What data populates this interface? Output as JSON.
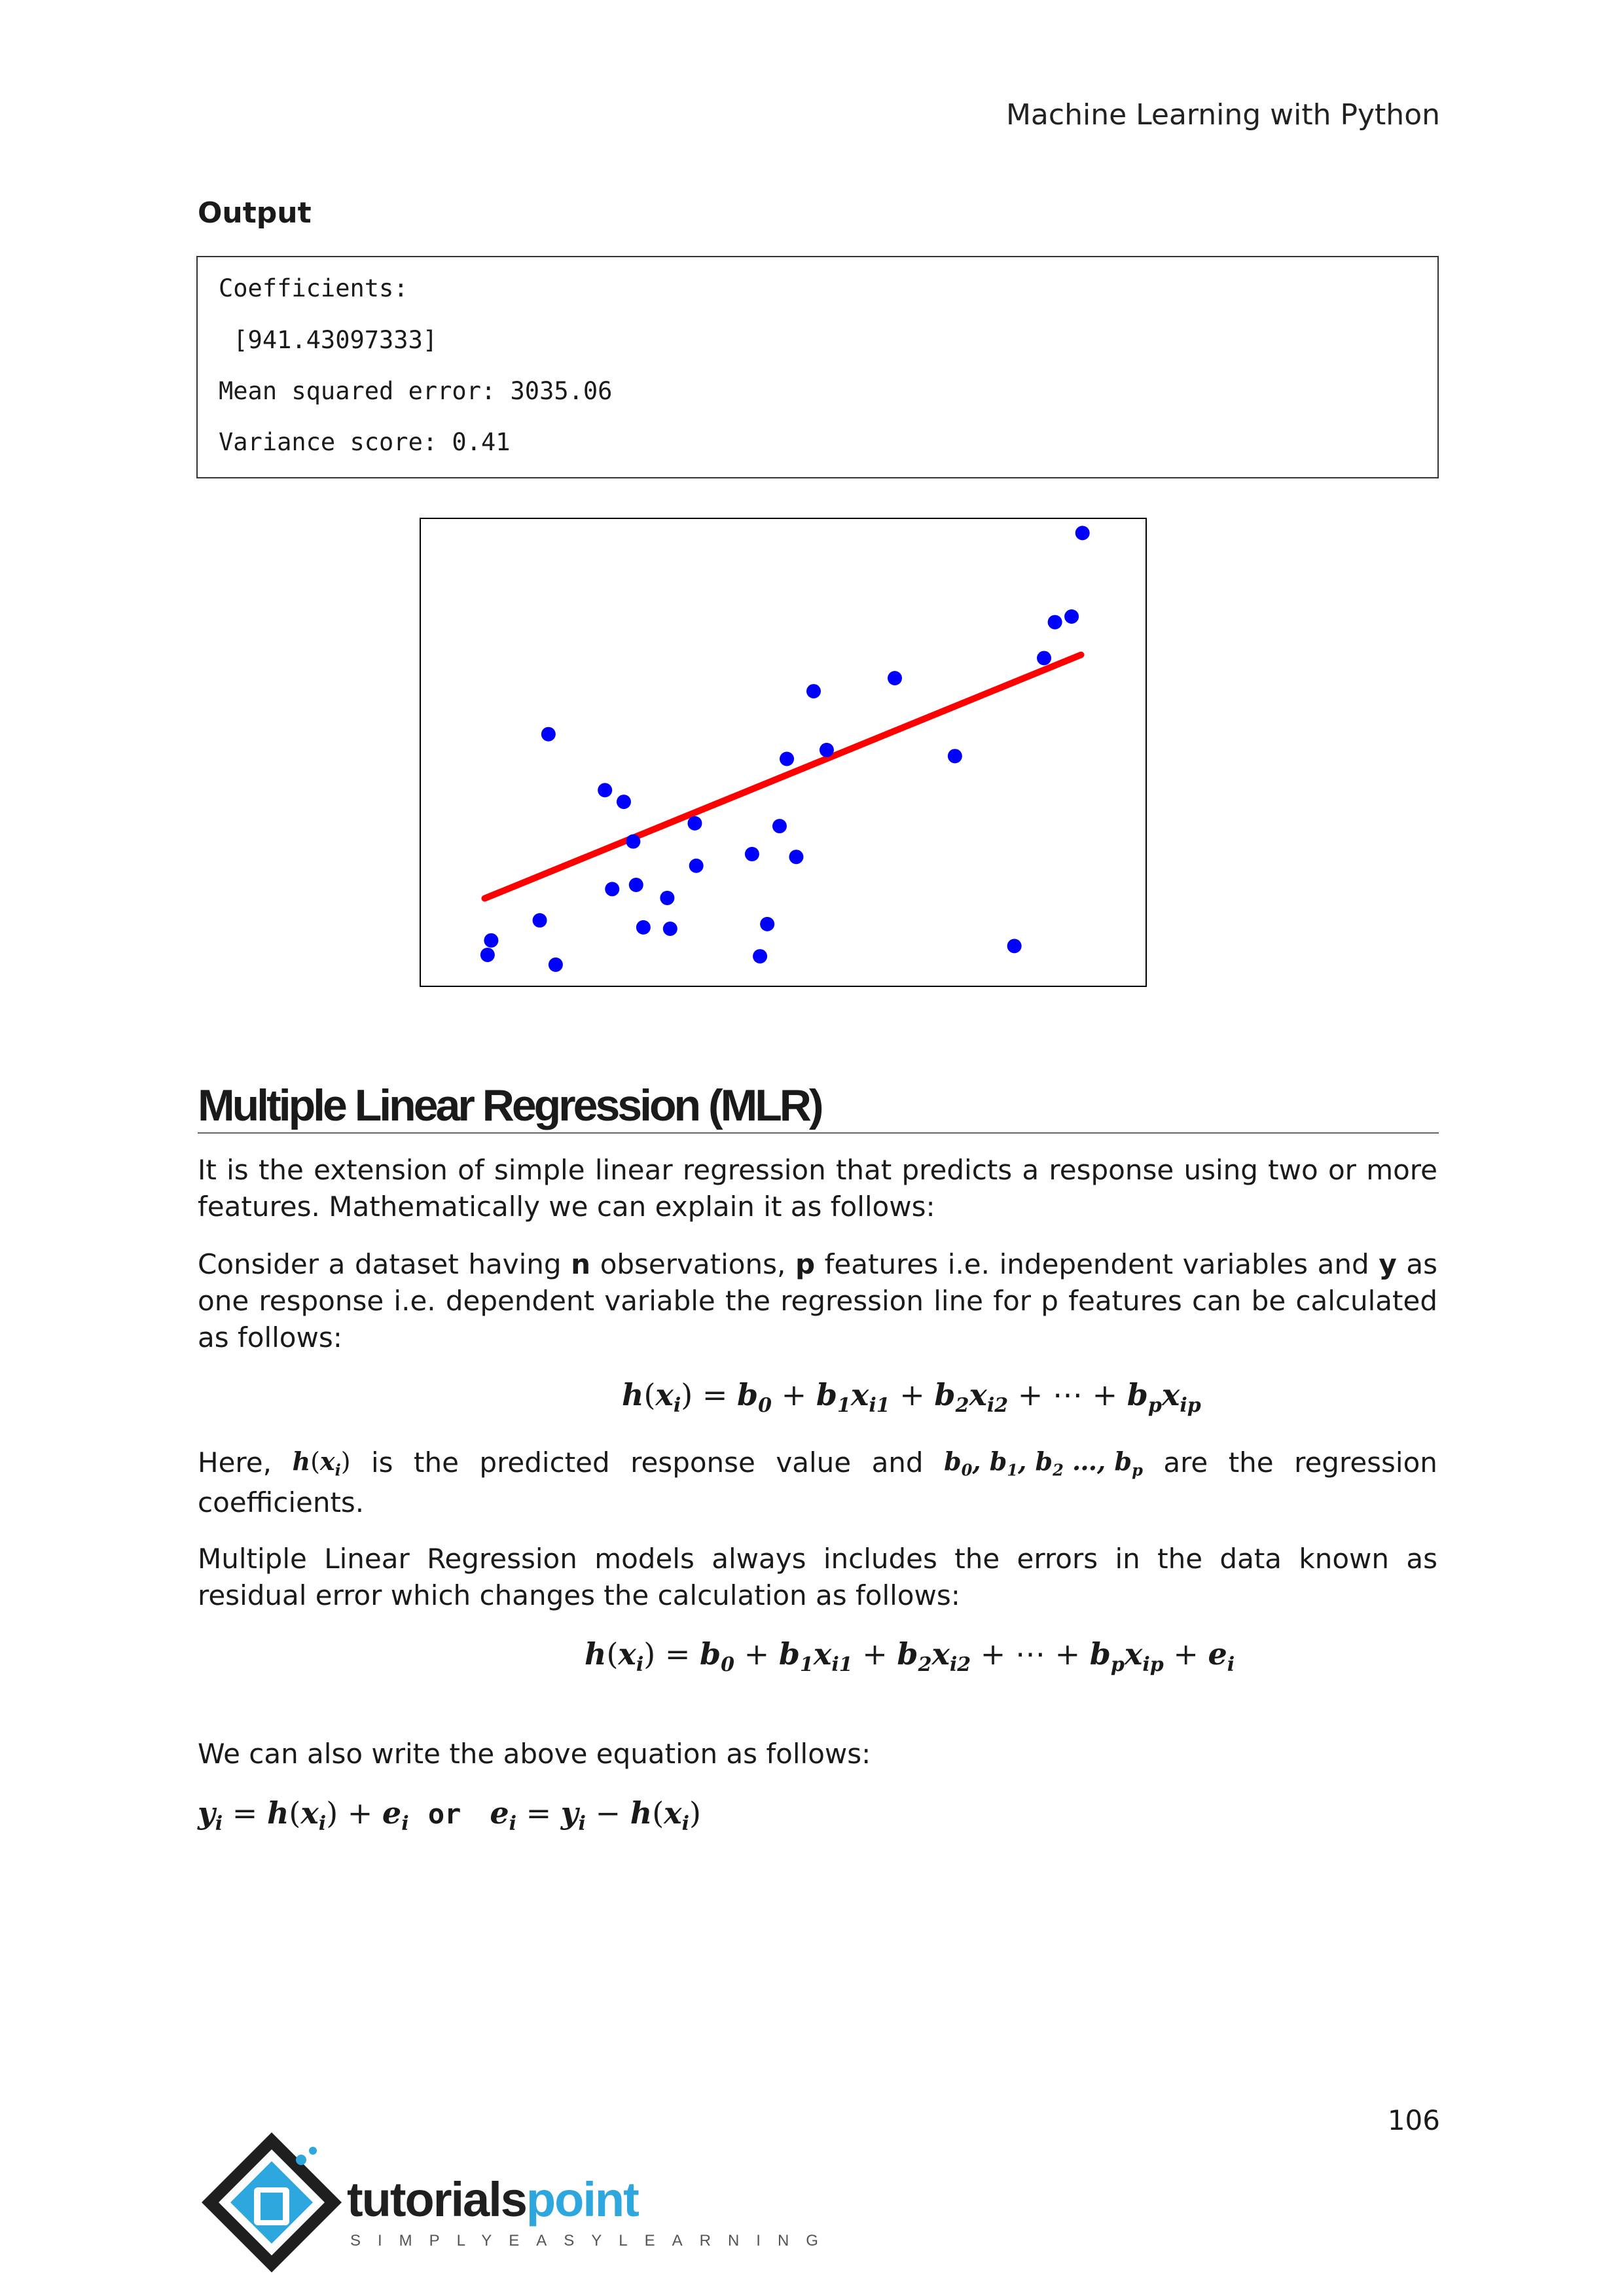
{
  "header": {
    "title": "Machine Learning with Python"
  },
  "output": {
    "label": "Output",
    "lines": [
      "Coefficients:",
      " [941.43097333]",
      "Mean squared error: 3035.06",
      "Variance score: 0.41"
    ]
  },
  "chart_data": {
    "type": "scatter",
    "title": "",
    "xlabel": "",
    "ylabel": "",
    "grid": false,
    "xlim": [
      0,
      1
    ],
    "ylim": [
      0,
      1
    ],
    "series": [
      {
        "kind": "scatter",
        "color": "#0000ff",
        "points": [
          [
            0.092,
            0.066
          ],
          [
            0.097,
            0.097
          ],
          [
            0.164,
            0.14
          ],
          [
            0.186,
            0.045
          ],
          [
            0.176,
            0.539
          ],
          [
            0.254,
            0.419
          ],
          [
            0.28,
            0.394
          ],
          [
            0.264,
            0.207
          ],
          [
            0.293,
            0.309
          ],
          [
            0.297,
            0.216
          ],
          [
            0.307,
            0.125
          ],
          [
            0.34,
            0.188
          ],
          [
            0.344,
            0.122
          ],
          [
            0.378,
            0.348
          ],
          [
            0.38,
            0.257
          ],
          [
            0.457,
            0.282
          ],
          [
            0.468,
            0.063
          ],
          [
            0.478,
            0.132
          ],
          [
            0.495,
            0.342
          ],
          [
            0.505,
            0.486
          ],
          [
            0.518,
            0.276
          ],
          [
            0.542,
            0.631
          ],
          [
            0.56,
            0.505
          ],
          [
            0.654,
            0.659
          ],
          [
            0.737,
            0.492
          ],
          [
            0.819,
            0.085
          ],
          [
            0.86,
            0.702
          ],
          [
            0.875,
            0.779
          ],
          [
            0.898,
            0.791
          ],
          [
            0.913,
            0.97
          ]
        ]
      },
      {
        "kind": "line",
        "color": "#ff0000",
        "points": [
          [
            0.088,
            0.187
          ],
          [
            0.911,
            0.709
          ]
        ]
      }
    ]
  },
  "mlr": {
    "heading": "Multiple Linear Regression (MLR)",
    "para1": "It is the extension of simple linear regression that predicts a response using two or more features. Mathematically we can explain it as follows:",
    "para2": {
      "a": "Consider a dataset having ",
      "n": "n",
      "b": " observations, ",
      "p": "p",
      "c": " features i.e. independent variables and ",
      "y": "y",
      "d": " as one response i.e. dependent variable the regression line for p features can be calculated as follows:"
    },
    "here": {
      "w1": "Here,",
      "w2": "is",
      "w3": "the",
      "w4": "predicted",
      "w5": "response",
      "w6": "value",
      "w7": "and",
      "w8": "are",
      "w9": "the",
      "w10": "regression",
      "line2": "coefficients."
    },
    "para3": "Multiple Linear Regression models always includes the errors in the data known as residual error which changes the calculation as follows:",
    "para4": "We can also write the above equation as follows:",
    "or_word": "or"
  },
  "footer": {
    "page_number": "106",
    "logo_text_dark": "tutorials",
    "logo_text_blue": "point",
    "logo_tagline": "SIMPLYEASYLEARNING"
  }
}
